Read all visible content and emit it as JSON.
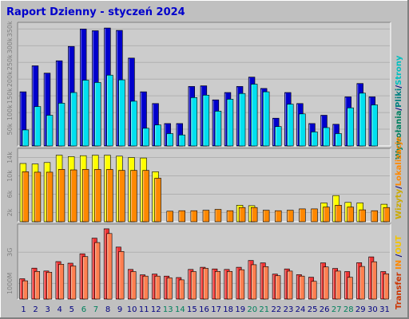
{
  "chart_data": [
    {
      "type": "bar",
      "title": "Raport Dzienny -  styczeń 2024",
      "panel": "top",
      "categories": [
        "1",
        "2",
        "3",
        "4",
        "5",
        "6",
        "7",
        "8",
        "9",
        "10",
        "11",
        "12",
        "13",
        "14",
        "15",
        "16",
        "17",
        "18",
        "19",
        "20",
        "21",
        "22",
        "23",
        "24",
        "25",
        "26",
        "27",
        "28",
        "29",
        "30",
        "31"
      ],
      "ylim": [
        0,
        370000
      ],
      "yticks": [
        {
          "v": 50000,
          "t": "50k"
        },
        {
          "v": 100000,
          "t": "100k"
        },
        {
          "v": 150000,
          "t": "150k"
        },
        {
          "v": 200000,
          "t": "200k"
        },
        {
          "v": 250000,
          "t": "250k"
        },
        {
          "v": 300000,
          "t": "300k"
        },
        {
          "v": 350000,
          "t": "350k"
        }
      ],
      "series": [
        {
          "name": "Wywołania",
          "color": "#0000cc",
          "values": [
            162000,
            240000,
            218000,
            255000,
            298000,
            350000,
            345000,
            353000,
            346000,
            263000,
            162000,
            127000,
            67000,
            67000,
            178000,
            180000,
            138000,
            160000,
            178000,
            206000,
            172000,
            83000,
            160000,
            127000,
            67000,
            92000,
            65000,
            147000,
            187000,
            147000,
            0
          ]
        },
        {
          "name": "Pliki",
          "color": "#00e0f0",
          "values": [
            48000,
            118000,
            92000,
            128000,
            160000,
            197000,
            190000,
            212000,
            198000,
            134000,
            53000,
            63000,
            37000,
            33000,
            145000,
            152000,
            104000,
            140000,
            157000,
            185000,
            162000,
            58000,
            125000,
            96000,
            42000,
            55000,
            37000,
            114000,
            158000,
            123000,
            0
          ]
        }
      ]
    },
    {
      "type": "bar",
      "panel": "middle",
      "categories": [
        "1",
        "2",
        "3",
        "4",
        "5",
        "6",
        "7",
        "8",
        "9",
        "10",
        "11",
        "12",
        "13",
        "14",
        "15",
        "16",
        "17",
        "18",
        "19",
        "20",
        "21",
        "22",
        "23",
        "24",
        "25",
        "26",
        "27",
        "28",
        "29",
        "30",
        "31"
      ],
      "ylim": [
        0,
        16000
      ],
      "yticks": [
        {
          "v": 2000,
          "t": "2k"
        },
        {
          "v": 6000,
          "t": "6k"
        },
        {
          "v": 10000,
          "t": "10k"
        },
        {
          "v": 14000,
          "t": "14k"
        }
      ],
      "series": [
        {
          "name": "Strony",
          "color": "#ffff00",
          "values": [
            12700,
            12600,
            12900,
            14500,
            14200,
            14400,
            14500,
            14500,
            14300,
            14000,
            13900,
            10900,
            0,
            0,
            0,
            0,
            0,
            0,
            3600,
            3500,
            0,
            0,
            0,
            0,
            0,
            4100,
            5700,
            4200,
            4100,
            0,
            3800
          ]
        },
        {
          "name": "Wizyty",
          "color": "#ff8800",
          "values": [
            10900,
            10800,
            10800,
            11400,
            11300,
            11400,
            11400,
            11400,
            11200,
            11200,
            11200,
            9500,
            2300,
            2400,
            2400,
            2500,
            2700,
            2400,
            3100,
            3100,
            2500,
            2400,
            2500,
            2800,
            2800,
            3200,
            3600,
            3200,
            2600,
            2400,
            3100
          ]
        }
      ]
    },
    {
      "type": "bar",
      "panel": "bottom",
      "categories": [
        "1",
        "2",
        "3",
        "4",
        "5",
        "6",
        "7",
        "8",
        "9",
        "10",
        "11",
        "12",
        "13",
        "14",
        "15",
        "16",
        "17",
        "18",
        "19",
        "20",
        "21",
        "22",
        "23",
        "24",
        "25",
        "26",
        "27",
        "28",
        "29",
        "30",
        "31"
      ],
      "ylim": [
        0,
        4800
      ],
      "yticks": [
        {
          "v": 1000,
          "t": "1000M"
        },
        {
          "v": 3000,
          "t": "3G"
        }
      ],
      "series": [
        {
          "name": "Transfer",
          "color": "#ee3333",
          "values": [
            1300,
            1980,
            1800,
            2400,
            2300,
            2900,
            3900,
            4500,
            3330,
            1900,
            1550,
            1600,
            1470,
            1380,
            1900,
            2040,
            1930,
            1900,
            2040,
            2470,
            2320,
            1600,
            1930,
            1560,
            1400,
            2320,
            1960,
            1760,
            2330,
            2700,
            1760
          ]
        },
        {
          "name": "IN",
          "color": "#ff7f50",
          "values": [
            1170,
            1770,
            1720,
            2230,
            2120,
            2720,
            3620,
            4200,
            3050,
            1760,
            1470,
            1470,
            1360,
            1230,
            1760,
            1970,
            1770,
            1770,
            1880,
            2200,
            2080,
            1500,
            1790,
            1470,
            1140,
            2060,
            1790,
            1400,
            2090,
            2390,
            1620
          ]
        },
        {
          "name": "OUT",
          "color": "#f4a460",
          "values": [
            0,
            0,
            0,
            0,
            0,
            0,
            0,
            0,
            0,
            0,
            0,
            0,
            0,
            0,
            0,
            0,
            0,
            0,
            0,
            0,
            0,
            0,
            0,
            0,
            0,
            0,
            0,
            0,
            0,
            0,
            0
          ]
        }
      ]
    }
  ],
  "day_colors": {
    "weekday": "#000080",
    "weekend": "#00805c"
  },
  "weekend_days": [
    6,
    7,
    13,
    14,
    20,
    21,
    27,
    28
  ],
  "right_legend_top": [
    {
      "text": "Wywołania",
      "color": "#008060"
    },
    {
      "text": "/",
      "color": "#000080"
    },
    {
      "text": "Pliki",
      "color": "#008080"
    },
    {
      "text": "/",
      "color": "#000080"
    },
    {
      "text": "Strony",
      "color": "#00c0c0"
    }
  ],
  "right_legend_mid": [
    {
      "text": "Wizyty",
      "color": "#ccaa00"
    },
    {
      "text": "/",
      "color": "#000080"
    },
    {
      "text": "Lokalizacje",
      "color": "#ff8800"
    }
  ],
  "right_legend_bot": [
    {
      "text": "Transfer",
      "color": "#cc3300"
    },
    {
      "text": " IN ",
      "color": "#ff8800"
    },
    {
      "text": "/",
      "color": "#000080"
    },
    {
      "text": "OUT",
      "color": "#f4c400"
    }
  ]
}
